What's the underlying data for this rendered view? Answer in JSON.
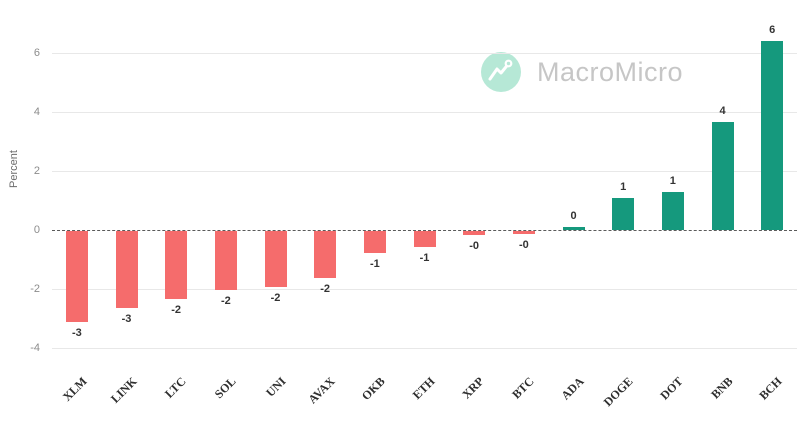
{
  "watermark": {
    "brand": "MacroMicro",
    "icon": "macromicro-logo-icon",
    "circle_color": "#b6e8d6",
    "text_color": "#c6c6c6"
  },
  "chart_data": {
    "type": "bar",
    "title": "",
    "xlabel": "",
    "ylabel": "Percent",
    "ylim": [
      -4.5,
      7.2
    ],
    "yticks": [
      6,
      4,
      2,
      0,
      -2,
      -4
    ],
    "grid": true,
    "zero_line_style": "dashed",
    "legend": false,
    "categories": [
      "XLM",
      "LINK",
      "LTC",
      "SOL",
      "UNI",
      "AVAX",
      "OKB",
      "ETH",
      "XRP",
      "BTC",
      "ADA",
      "DOGE",
      "DOT",
      "BNB",
      "BCH"
    ],
    "values": [
      -3.1,
      -2.6,
      -2.3,
      -2.0,
      -1.9,
      -1.6,
      -0.75,
      -0.55,
      -0.15,
      -0.1,
      0.1,
      1.1,
      1.3,
      3.65,
      6.4
    ],
    "bar_labels": [
      "-3",
      "-3",
      "-2",
      "-2",
      "-2",
      "-2",
      "-1",
      "-1",
      "-0",
      "-0",
      "0",
      "1",
      "1",
      "4",
      "6"
    ],
    "negative_color": "#f56c6c",
    "positive_color": "#15997d"
  }
}
